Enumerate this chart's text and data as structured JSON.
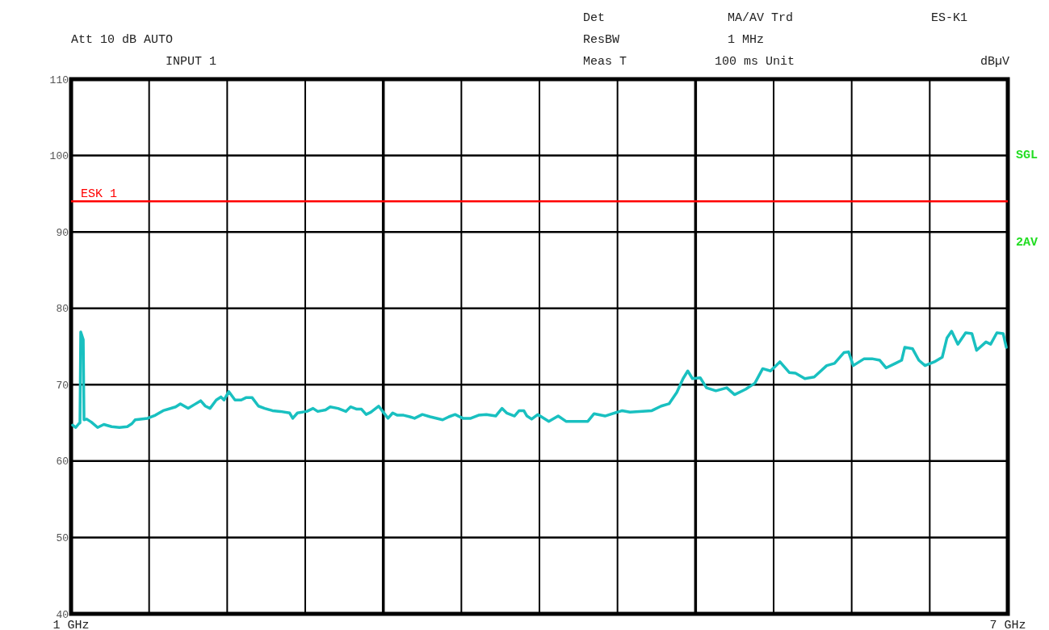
{
  "chart_data": {
    "type": "line",
    "ylabel": "dBµV",
    "annotations": [
      "Att 10 dB AUTO",
      "INPUT 1",
      "Det",
      "MA/AV Trd",
      "ES-K1",
      "ResBW",
      "1 MHz",
      "Meas T",
      "100 ms Unit",
      "SGL",
      "2AV"
    ],
    "xlim": [
      1,
      7
    ],
    "xticks": [
      {
        "value": 1,
        "label": "1 GHz"
      },
      {
        "value": 1.5,
        "label": null
      },
      {
        "value": 2,
        "label": null
      },
      {
        "value": 2.5,
        "label": null
      },
      {
        "value": 3,
        "label": null
      },
      {
        "value": 3.5,
        "label": null
      },
      {
        "value": 4,
        "label": null
      },
      {
        "value": 4.5,
        "label": null
      },
      {
        "value": 5,
        "label": null
      },
      {
        "value": 5.5,
        "label": null
      },
      {
        "value": 6,
        "label": null
      },
      {
        "value": 6.5,
        "label": null
      },
      {
        "value": 7,
        "label": "7 GHz"
      }
    ],
    "ylim": [
      40,
      110
    ],
    "yticks": [
      40,
      50,
      60,
      70,
      80,
      90,
      100,
      110
    ],
    "grid": true,
    "line_style": "solid",
    "marker": "none",
    "ref_lines": [
      {
        "axis": "y",
        "value": 94,
        "label": "ESK 1",
        "color": "#ff0000"
      }
    ],
    "series": [
      {
        "color": "#19c0c0",
        "x": [
          1.01,
          1.03,
          1.05,
          1.057,
          1.062,
          1.078,
          1.083,
          1.1,
          1.13,
          1.17,
          1.21,
          1.26,
          1.31,
          1.36,
          1.39,
          1.41,
          1.49,
          1.54,
          1.59,
          1.67,
          1.7,
          1.75,
          1.79,
          1.83,
          1.86,
          1.89,
          1.93,
          1.96,
          1.98,
          2.01,
          2.05,
          2.09,
          2.12,
          2.16,
          2.2,
          2.24,
          2.29,
          2.34,
          2.4,
          2.42,
          2.45,
          2.51,
          2.55,
          2.58,
          2.63,
          2.66,
          2.71,
          2.76,
          2.79,
          2.83,
          2.86,
          2.89,
          2.92,
          2.97,
          3.0,
          3.03,
          3.06,
          3.09,
          3.13,
          3.17,
          3.2,
          3.25,
          3.3,
          3.38,
          3.42,
          3.46,
          3.48,
          3.51,
          3.56,
          3.61,
          3.66,
          3.72,
          3.76,
          3.79,
          3.84,
          3.87,
          3.9,
          3.92,
          3.95,
          3.99,
          4.06,
          4.12,
          4.17,
          4.31,
          4.35,
          4.42,
          4.53,
          4.58,
          4.72,
          4.78,
          4.83,
          4.88,
          4.92,
          4.95,
          4.98,
          5.03,
          5.07,
          5.13,
          5.2,
          5.25,
          5.32,
          5.38,
          5.43,
          5.48,
          5.54,
          5.6,
          5.64,
          5.7,
          5.76,
          5.84,
          5.89,
          5.95,
          5.98,
          6.01,
          6.08,
          6.13,
          6.18,
          6.22,
          6.28,
          6.32,
          6.34,
          6.39,
          6.43,
          6.47,
          6.53,
          6.58,
          6.61,
          6.64,
          6.68,
          6.73,
          6.77,
          6.8,
          6.86,
          6.89,
          6.93,
          6.97,
          6.99
        ],
        "values": [
          64.7,
          64.4,
          64.9,
          65.0,
          76.9,
          75.9,
          65.4,
          65.5,
          65.1,
          64.4,
          64.8,
          64.5,
          64.4,
          64.5,
          64.9,
          65.4,
          65.6,
          66.0,
          66.6,
          67.1,
          67.5,
          66.9,
          67.4,
          67.9,
          67.2,
          66.9,
          68.0,
          68.4,
          68.0,
          69.1,
          68.0,
          68.0,
          68.3,
          68.3,
          67.2,
          66.9,
          66.6,
          66.5,
          66.3,
          65.6,
          66.3,
          66.5,
          66.9,
          66.5,
          66.7,
          67.1,
          66.9,
          66.5,
          67.1,
          66.8,
          66.8,
          66.1,
          66.4,
          67.2,
          66.4,
          65.6,
          66.3,
          66.0,
          66.0,
          65.8,
          65.6,
          66.1,
          65.8,
          65.4,
          65.8,
          66.1,
          65.9,
          65.6,
          65.6,
          66.0,
          66.1,
          65.9,
          66.9,
          66.3,
          65.9,
          66.6,
          66.6,
          65.9,
          65.5,
          66.1,
          65.2,
          65.9,
          65.2,
          65.2,
          66.2,
          65.9,
          66.6,
          66.4,
          66.6,
          67.2,
          67.5,
          69.0,
          70.8,
          71.8,
          70.8,
          70.9,
          69.6,
          69.2,
          69.6,
          68.7,
          69.4,
          70.2,
          72.1,
          71.8,
          73.0,
          71.6,
          71.5,
          70.8,
          71.0,
          72.5,
          72.8,
          74.2,
          74.3,
          72.5,
          73.4,
          73.4,
          73.2,
          72.2,
          72.8,
          73.2,
          74.9,
          74.7,
          73.2,
          72.5,
          73.0,
          73.6,
          76.1,
          77.0,
          75.3,
          76.8,
          76.7,
          74.5,
          75.6,
          75.3,
          76.8,
          76.7,
          74.9
        ]
      }
    ]
  }
}
